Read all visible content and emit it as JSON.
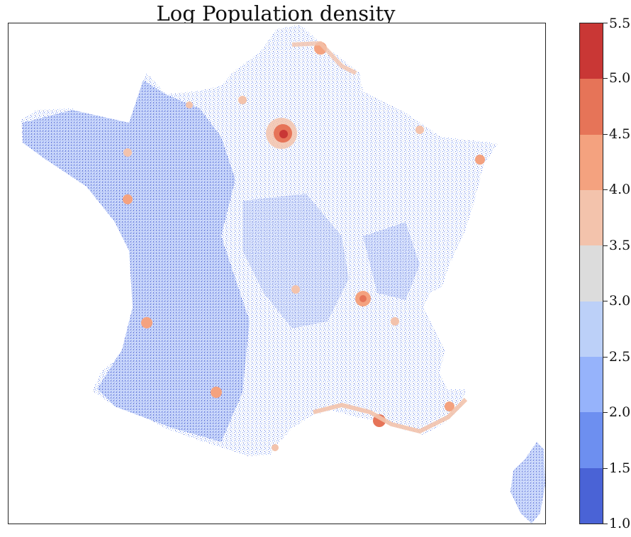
{
  "title": "Log Population density",
  "colorbar": {
    "ticks": [
      "1.0",
      "1.5",
      "2.0",
      "2.5",
      "3.0",
      "3.5",
      "4.0",
      "4.5",
      "5.0",
      "5.5"
    ],
    "min": 1.0,
    "max": 5.5,
    "bands": [
      {
        "from": 1.0,
        "to": 1.5,
        "color": "#4a63d6"
      },
      {
        "from": 1.5,
        "to": 2.0,
        "color": "#6d8ff0"
      },
      {
        "from": 2.0,
        "to": 2.5,
        "color": "#96b3fb"
      },
      {
        "from": 2.5,
        "to": 3.0,
        "color": "#bcd0f8"
      },
      {
        "from": 3.0,
        "to": 3.5,
        "color": "#dcdcdc"
      },
      {
        "from": 3.5,
        "to": 4.0,
        "color": "#f3c3ac"
      },
      {
        "from": 4.0,
        "to": 4.5,
        "color": "#f4a27f"
      },
      {
        "from": 4.5,
        "to": 5.0,
        "color": "#e67458"
      },
      {
        "from": 5.0,
        "to": 5.5,
        "color": "#c93735"
      }
    ]
  },
  "map": {
    "region": "France",
    "colors": {
      "low": "#6d8ff0",
      "mid": "#bcd0f8",
      "high": "#e67458",
      "peak": "#c93735"
    }
  }
}
